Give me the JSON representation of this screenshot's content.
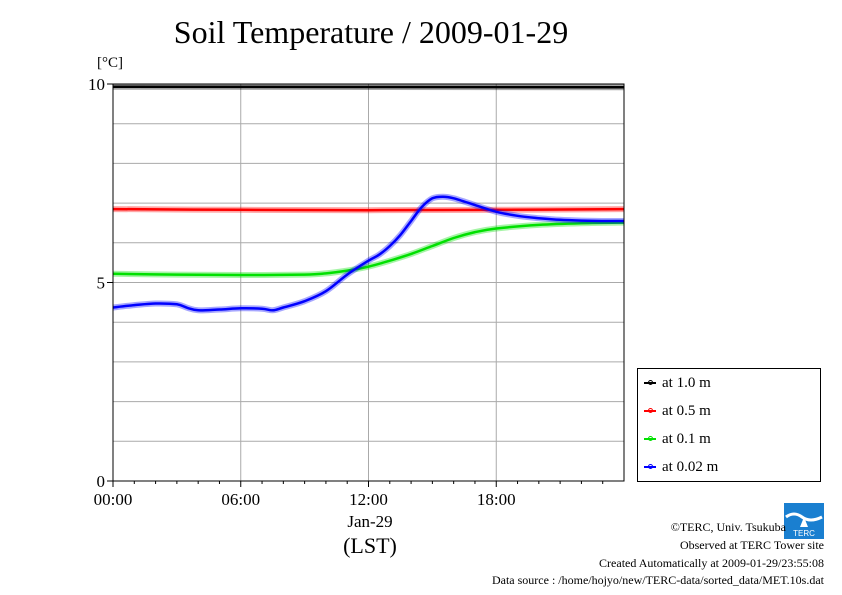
{
  "chart_data": {
    "type": "line",
    "title": "Soil Temperature / 2009-01-29",
    "ylabel": "[°C]",
    "xlabel": "Jan-29",
    "xlabel_sub": "(LST)",
    "xlim": [
      0,
      24
    ],
    "ylim": [
      0,
      10
    ],
    "yticks": [
      0,
      5,
      10
    ],
    "xticks": [
      0,
      6,
      12,
      18
    ],
    "xtick_labels": [
      "00:00",
      "06:00",
      "12:00",
      "18:00"
    ],
    "grid": true,
    "legend_position": "bottom-right, outside plot",
    "series": [
      {
        "name": "at 1.0 m",
        "color": "#000000",
        "x": [
          0,
          24
        ],
        "y": [
          9.93,
          9.92
        ]
      },
      {
        "name": "at 0.5 m",
        "color": "#ff0000",
        "x": [
          0,
          6,
          12,
          18,
          24
        ],
        "y": [
          6.85,
          6.83,
          6.82,
          6.83,
          6.85
        ]
      },
      {
        "name": "at 0.1 m",
        "color": "#00e000",
        "x": [
          0,
          3,
          6,
          9,
          10,
          11,
          12,
          13,
          14,
          15,
          16,
          17,
          18,
          20,
          22,
          24
        ],
        "y": [
          5.22,
          5.2,
          5.19,
          5.2,
          5.23,
          5.3,
          5.4,
          5.55,
          5.72,
          5.92,
          6.12,
          6.27,
          6.36,
          6.45,
          6.49,
          6.51
        ]
      },
      {
        "name": "at 0.02 m",
        "color": "#0000ff",
        "x": [
          0,
          1,
          2,
          3,
          3.5,
          4,
          5,
          6,
          7,
          7.5,
          8,
          9,
          10,
          11,
          12,
          12.5,
          13,
          13.5,
          14,
          14.5,
          15,
          15.5,
          16,
          17,
          18,
          19,
          20,
          21,
          22,
          23,
          24
        ],
        "y": [
          4.37,
          4.43,
          4.47,
          4.45,
          4.36,
          4.3,
          4.32,
          4.35,
          4.34,
          4.3,
          4.37,
          4.53,
          4.78,
          5.2,
          5.55,
          5.7,
          5.92,
          6.2,
          6.55,
          6.9,
          7.12,
          7.16,
          7.12,
          6.95,
          6.78,
          6.68,
          6.62,
          6.58,
          6.56,
          6.55,
          6.55
        ]
      }
    ]
  },
  "footer": {
    "copyright": "©TERC, Univ. Tsukuba",
    "site": "Observed at TERC Tower site",
    "created": "Created Automatically at 2009-01-29/23:55:08",
    "source": "Data source : /home/hojyo/new/TERC-data/sorted_data/MET.10s.dat"
  },
  "logo_text": "TERC"
}
